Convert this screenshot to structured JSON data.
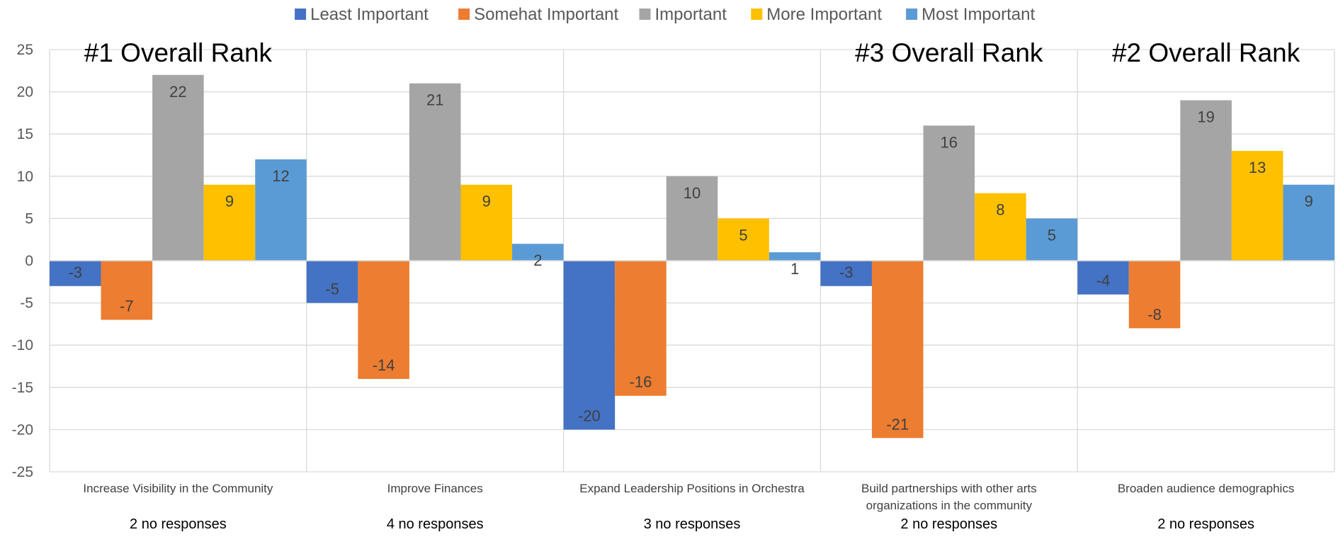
{
  "chart_data": {
    "type": "bar",
    "categories": [
      [
        "Increase Visibility in the Community"
      ],
      [
        "Improve Finances"
      ],
      [
        "Expand Leadership Positions in Orchestra"
      ],
      [
        "Build partnerships with other arts",
        "organizations in the community"
      ],
      [
        "Broaden audience demographics"
      ]
    ],
    "no_responses": [
      "2 no responses",
      "4 no responses",
      "3 no responses",
      "2 no responses",
      "2 no responses"
    ],
    "rank_labels": [
      "#1 Overall Rank",
      "",
      "",
      "#3 Overall Rank",
      "#2 Overall Rank"
    ],
    "series": [
      {
        "name": "Least Important",
        "color": "#4472C4",
        "values": [
          -3,
          -5,
          -20,
          -3,
          -4
        ]
      },
      {
        "name": "Somehat Important",
        "color": "#ED7D31",
        "values": [
          -7,
          -14,
          -16,
          -21,
          -8
        ]
      },
      {
        "name": "Important",
        "color": "#A5A5A5",
        "values": [
          22,
          21,
          10,
          16,
          19
        ]
      },
      {
        "name": "More Important",
        "color": "#FFC000",
        "values": [
          9,
          9,
          5,
          8,
          13
        ]
      },
      {
        "name": "Most Important",
        "color": "#5B9BD5",
        "values": [
          12,
          2,
          1,
          5,
          9
        ]
      }
    ],
    "ylim": [
      -25,
      25
    ],
    "yticks": [
      25,
      20,
      15,
      10,
      5,
      0,
      -5,
      -10,
      -15,
      -20,
      -25
    ],
    "grid": true,
    "legend_position": "top",
    "data_labels": true
  }
}
